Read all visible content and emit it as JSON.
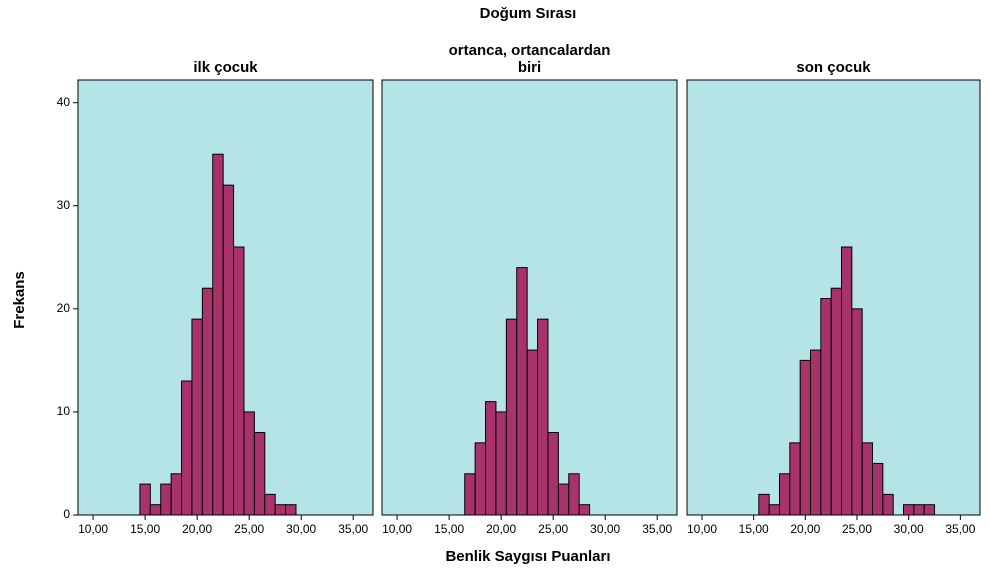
{
  "chart_data": {
    "type": "histogram",
    "title": "Doğum Sırası",
    "xlabel": "Benlik Saygısı Puanları",
    "ylabel": "Frekans",
    "color": "#a8336b",
    "background": "#b4e4e6",
    "xlim": [
      8.55,
      36.9
    ],
    "ylim": [
      0,
      42.2
    ],
    "xticks": [
      {
        "value": 10,
        "label": "10,00"
      },
      {
        "value": 15,
        "label": "15,00"
      },
      {
        "value": 20,
        "label": "20,00"
      },
      {
        "value": 25,
        "label": "25,00"
      },
      {
        "value": 30,
        "label": "30,00"
      },
      {
        "value": 35,
        "label": "35,00"
      }
    ],
    "yticks": [
      0,
      10,
      20,
      30,
      40
    ],
    "panels": [
      {
        "title": "ilk çocuk",
        "bins": [
          14.5,
          15.5,
          16.5,
          17.5,
          18.5,
          19.5,
          20.5,
          21.5,
          22.5,
          23.5,
          24.5,
          25.5,
          26.5,
          27.5,
          28.5,
          29.5
        ],
        "counts": [
          3,
          1,
          3,
          4,
          13,
          19,
          22,
          35,
          32,
          26,
          10,
          8,
          2,
          1,
          1
        ]
      },
      {
        "title": "ortanca, ortancalardan\nbiri",
        "bins": [
          16.5,
          17.5,
          18.5,
          19.5,
          20.5,
          21.5,
          22.5,
          23.5,
          24.5,
          25.5,
          26.5,
          27.5,
          28.5
        ],
        "counts": [
          4,
          7,
          11,
          10,
          19,
          24,
          16,
          19,
          8,
          3,
          4,
          1
        ]
      },
      {
        "title": "son çocuk",
        "bins": [
          15.5,
          16.5,
          17.5,
          18.5,
          19.5,
          20.5,
          21.5,
          22.5,
          23.5,
          24.5,
          25.5,
          26.5,
          27.5,
          28.5,
          29.5,
          30.5,
          31.5,
          32.5
        ],
        "counts": [
          2,
          1,
          4,
          7,
          15,
          16,
          21,
          22,
          26,
          20,
          7,
          5,
          2,
          0,
          1,
          1,
          1
        ]
      }
    ]
  }
}
